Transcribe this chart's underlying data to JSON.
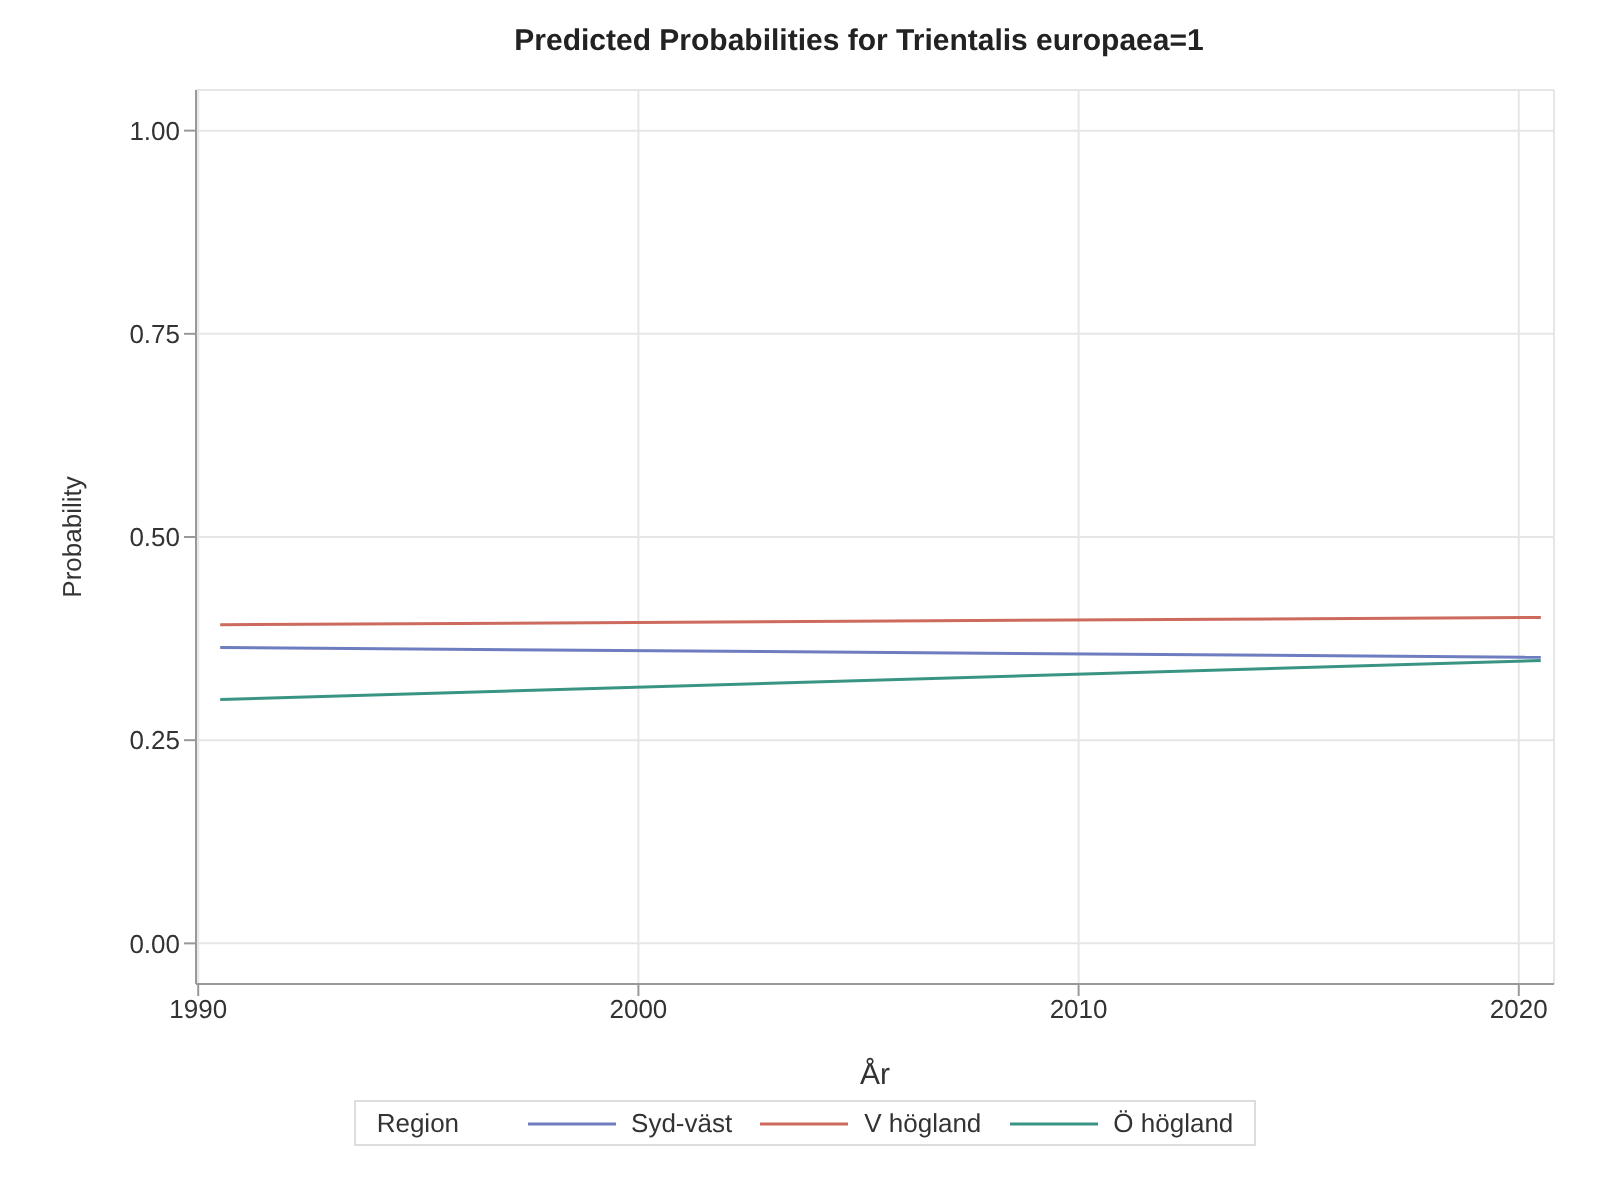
{
  "chart_data": {
    "type": "line",
    "title": "Predicted Probabilities for Trientalis europaea=1",
    "xlabel": "År",
    "ylabel": "Probability",
    "legend_title": "Region",
    "x": [
      1990.5,
      2020.5
    ],
    "series": [
      {
        "name": "Syd-väst",
        "color": "#6e7cc0",
        "values": [
          0.364,
          0.352
        ]
      },
      {
        "name": "V högland",
        "color": "#cc6a5e",
        "values": [
          0.392,
          0.401
        ]
      },
      {
        "name": "Ö högland",
        "color": "#3a9484",
        "values": [
          0.3,
          0.348
        ]
      }
    ],
    "xlim": [
      1989.95,
      2020.8
    ],
    "xticks": [
      1990,
      2000,
      2010,
      2020
    ],
    "ylim": [
      -0.05,
      1.05
    ],
    "yticks": [
      {
        "value": 0,
        "label": "0.00"
      },
      {
        "value": 0.25,
        "label": "0.25"
      },
      {
        "value": 0.5,
        "label": "0.50"
      },
      {
        "value": 0.75,
        "label": "0.75"
      },
      {
        "value": 1,
        "label": "1.00"
      }
    ],
    "grid": true,
    "legend": "bottom",
    "marker": "none",
    "line_style": "solid"
  }
}
